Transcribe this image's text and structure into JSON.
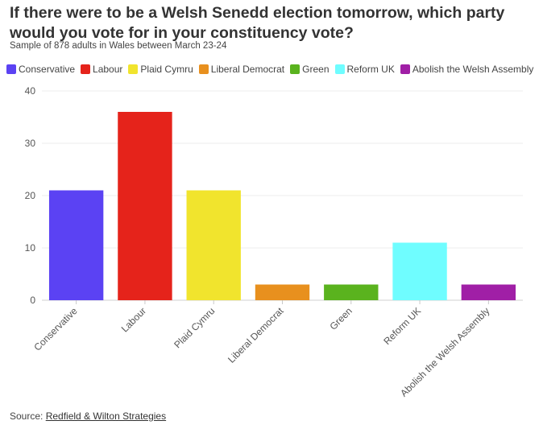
{
  "title": "If there were to be a Welsh Senedd election tomorrow, which party would you vote for in your constituency vote?",
  "subtitle": "Sample of 878 adults in Wales between March 23-24",
  "source": {
    "label": "Source: ",
    "link_text": "Redfield & Wilton Strategies"
  },
  "chart_data": {
    "type": "bar",
    "categories": [
      "Conservative",
      "Labour",
      "Plaid Cymru",
      "Liberal Democrat",
      "Green",
      "Reform UK",
      "Abolish the Welsh Assembly"
    ],
    "values": [
      21,
      36,
      21,
      3,
      3,
      11,
      3
    ],
    "colors": [
      "#5b42f3",
      "#e5231b",
      "#f1e42d",
      "#e8901e",
      "#5ab31e",
      "#6ffdff",
      "#a01fa6"
    ],
    "ylim": [
      0,
      40
    ],
    "yticks": [
      0,
      10,
      20,
      30,
      40
    ],
    "grid": true,
    "legend": "top"
  }
}
